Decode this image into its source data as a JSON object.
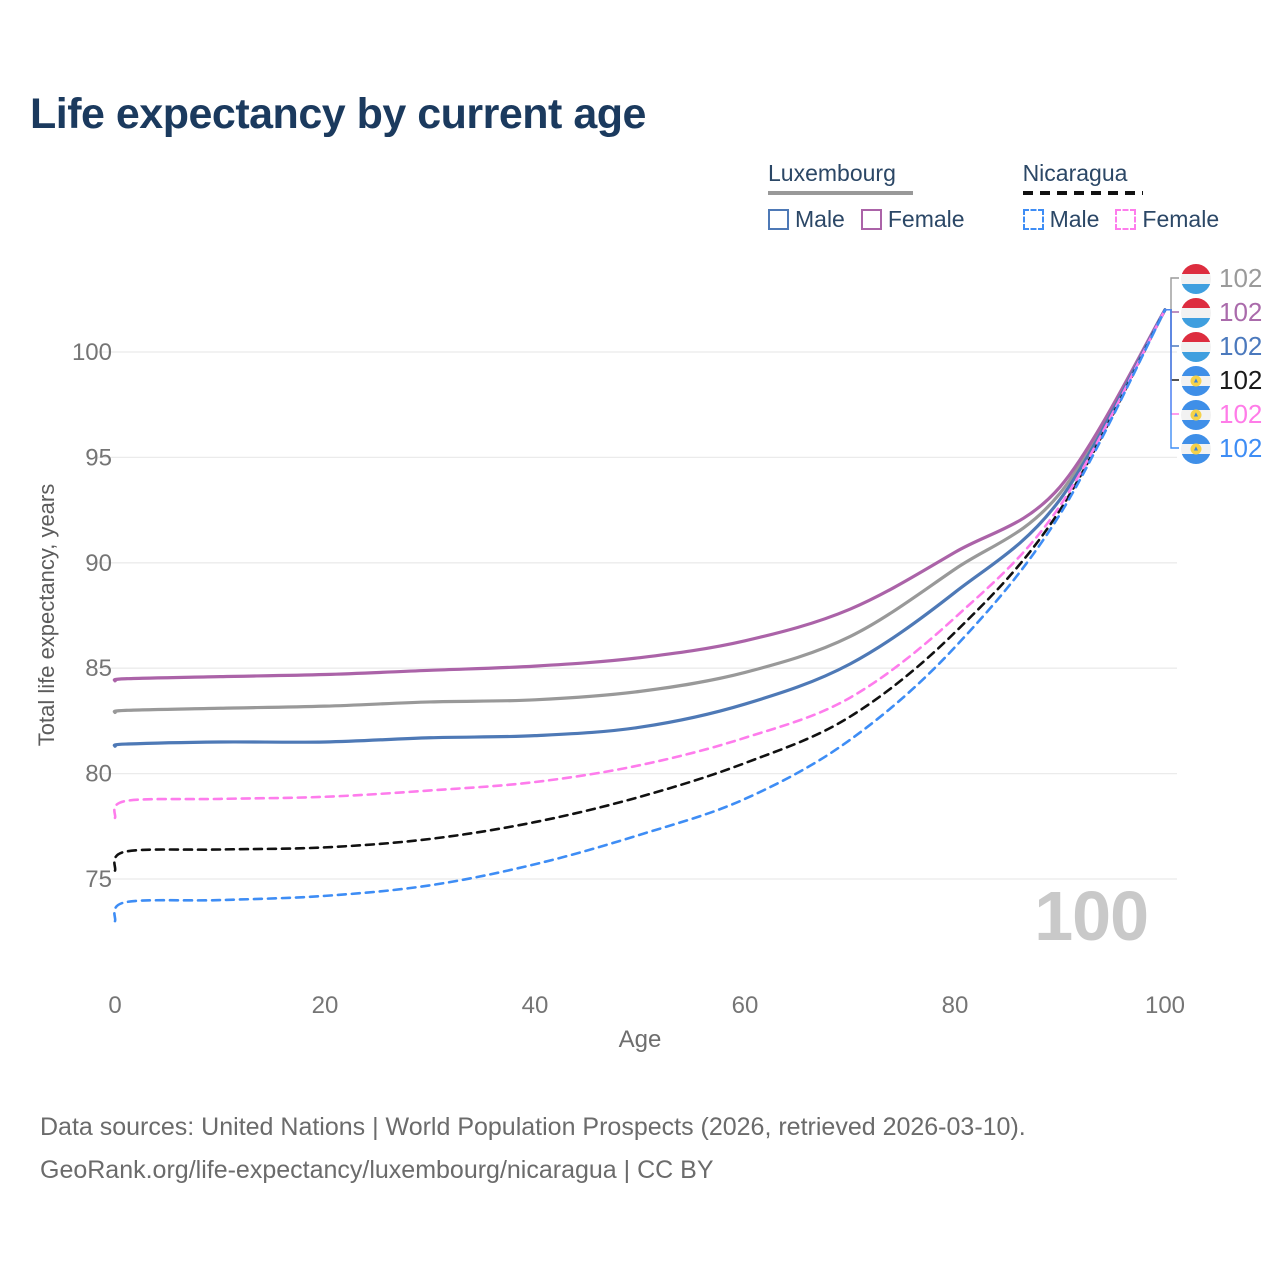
{
  "title": "Life expectancy by current age",
  "legend": {
    "groups": [
      {
        "name": "Luxembourg",
        "line_style": "solid",
        "line_color": "#999999",
        "items": [
          {
            "label": "Male",
            "color": "#4e79b6"
          },
          {
            "label": "Female",
            "color": "#ab63a8"
          }
        ]
      },
      {
        "name": "Nicaragua",
        "line_style": "dashed",
        "line_color": "#111111",
        "items": [
          {
            "label": "Male",
            "color": "#3e8df5"
          },
          {
            "label": "Female",
            "color": "#fe7cec"
          }
        ]
      }
    ]
  },
  "watermark": "100",
  "end_labels": [
    {
      "value": "102",
      "flag": "luxembourg",
      "color": "#9a9a9a"
    },
    {
      "value": "102",
      "flag": "luxembourg",
      "color": "#aa6bab"
    },
    {
      "value": "102",
      "flag": "luxembourg",
      "color": "#4b79bd"
    },
    {
      "value": "102",
      "flag": "nicaragua",
      "color": "#1a1a1a"
    },
    {
      "value": "102",
      "flag": "nicaragua",
      "color": "#ff7ce8"
    },
    {
      "value": "102",
      "flag": "nicaragua",
      "color": "#3e8df5"
    }
  ],
  "footer": {
    "line1": "Data sources: United Nations | World Population Prospects (2026, retrieved 2026-03-10).",
    "line2": "GeoRank.org/life-expectancy/luxembourg/nicaragua | CC BY"
  },
  "chart_data": {
    "type": "line",
    "title": "Life expectancy by current age",
    "xlabel": "Age",
    "ylabel": "Total life expectancy, years",
    "xlim": [
      0,
      100
    ],
    "ylim": [
      71,
      103
    ],
    "x_ticks": [
      0,
      20,
      40,
      60,
      80,
      100
    ],
    "y_ticks": [
      75,
      80,
      85,
      90,
      95,
      100
    ],
    "grid": "horizontal",
    "legend_position": "top-right",
    "x": [
      0,
      1,
      10,
      20,
      30,
      40,
      50,
      60,
      70,
      80,
      90,
      100
    ],
    "series": [
      {
        "name": "Luxembourg",
        "sex": "Both",
        "color": "#999999",
        "dash": "solid",
        "values": [
          82.9,
          83.0,
          83.1,
          83.2,
          83.4,
          83.5,
          83.9,
          84.8,
          86.5,
          89.7,
          93.3,
          102
        ]
      },
      {
        "name": "Luxembourg Female",
        "sex": "Female",
        "color": "#ab63a8",
        "dash": "solid",
        "values": [
          84.4,
          84.5,
          84.6,
          84.7,
          84.9,
          85.1,
          85.5,
          86.3,
          87.8,
          90.5,
          93.6,
          102
        ]
      },
      {
        "name": "Luxembourg Male",
        "sex": "Male",
        "color": "#4e79b6",
        "dash": "solid",
        "values": [
          81.3,
          81.4,
          81.5,
          81.5,
          81.7,
          81.8,
          82.2,
          83.3,
          85.2,
          88.6,
          93.0,
          102
        ]
      },
      {
        "name": "Nicaragua",
        "sex": "Both",
        "color": "#111111",
        "dash": "dashed",
        "values": [
          75.4,
          76.3,
          76.4,
          76.5,
          76.9,
          77.7,
          78.9,
          80.5,
          82.7,
          86.7,
          92.5,
          102
        ]
      },
      {
        "name": "Nicaragua Female",
        "sex": "Female",
        "color": "#fe7cec",
        "dash": "dashed",
        "values": [
          77.9,
          78.7,
          78.8,
          78.9,
          79.2,
          79.6,
          80.4,
          81.7,
          83.6,
          87.4,
          92.7,
          102
        ]
      },
      {
        "name": "Nicaragua Male",
        "sex": "Male",
        "color": "#3e8df5",
        "dash": "dashed",
        "values": [
          73.0,
          73.9,
          74.0,
          74.2,
          74.7,
          75.7,
          77.1,
          78.8,
          81.6,
          86.0,
          92.3,
          102
        ]
      }
    ]
  }
}
